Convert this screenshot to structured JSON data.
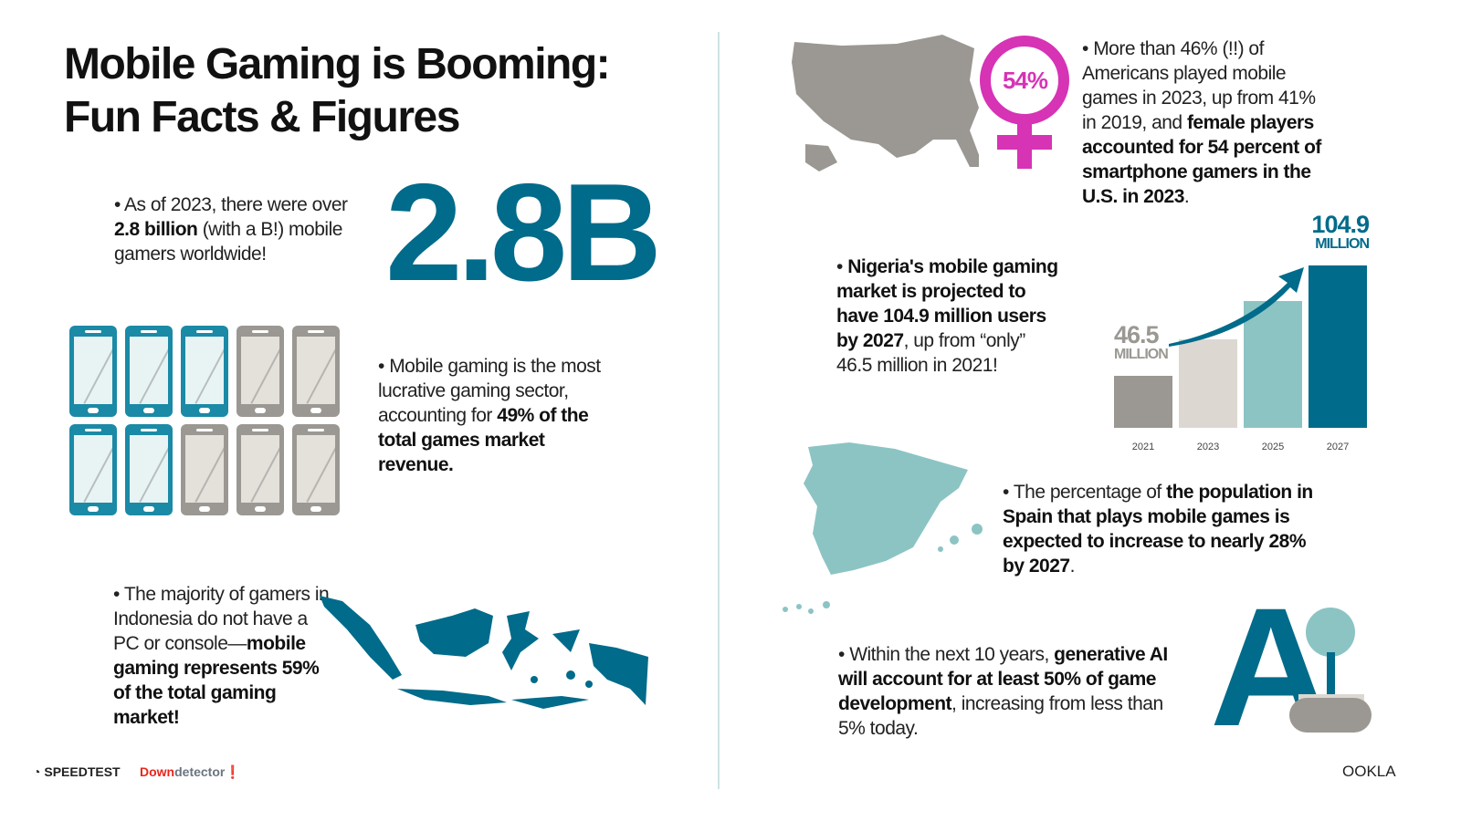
{
  "title": {
    "line1": "Mobile Gaming is Booming:",
    "line2": "Fun Facts & Figures"
  },
  "fact_gamers": {
    "pre": "As of 2023, there were over ",
    "bold": "2.8 billion",
    "post": " (with a B!) mobile gamers worldwide!",
    "big_number": "2.8B"
  },
  "fact_revenue": {
    "pre": "Mobile gaming is the most lucrative gaming sector, accounting for ",
    "bold": "49% of the total games market revenue.",
    "phones_total": 10,
    "phones_highlighted": 5
  },
  "fact_indonesia": {
    "pre": "The majority of gamers in Indonesia do not have a PC or console—",
    "bold": "mobile gaming represents 59% of the total gaming market!"
  },
  "fact_us": {
    "pre": "More than 46% (!!) of Americans played mobile games in 2023, up from 41% in 2019, and ",
    "bold": "female players accounted for 54 percent of smartphone gamers in the U.S. in 2023",
    "post": ".",
    "badge": "54%"
  },
  "fact_nigeria": {
    "bold1": "Nigeria's mobile gaming market is projected to have 104.9 million users by 2027",
    "post": ", up from “only” 46.5 million in 2021!"
  },
  "fact_spain": {
    "pre": "The percentage of ",
    "bold": "the population in Spain that plays mobile games is expected to increase to nearly 28% by 2027",
    "post": "."
  },
  "fact_ai": {
    "pre": "Within the next 10 years, ",
    "bold": "generative AI will account for at least 50% of game development",
    "post": ", increasing from less than 5% today.",
    "icon_text": "A"
  },
  "chart_data": {
    "type": "bar",
    "categories": [
      "2021",
      "2023",
      "2025",
      "2027"
    ],
    "values": [
      46.5,
      66,
      86,
      104.9
    ],
    "colors": [
      "#9b9893",
      "#dcd8d1",
      "#8cc4c4",
      "#006b8a"
    ],
    "labels": [
      {
        "value": "46.5",
        "unit": "MILLION"
      },
      null,
      null,
      {
        "value": "104.9",
        "unit": "MILLION"
      }
    ],
    "grid": false
  },
  "footer": {
    "speedtest": "SPEEDTEST",
    "downdetector_a": "Down",
    "downdetector_b": "detector",
    "ookla": "OOKLA"
  },
  "colors": {
    "teal": "#006b8a",
    "light_teal": "#8cc4c4",
    "grey": "#9b9893",
    "beige": "#dcd8d1",
    "magenta": "#d633b5"
  }
}
